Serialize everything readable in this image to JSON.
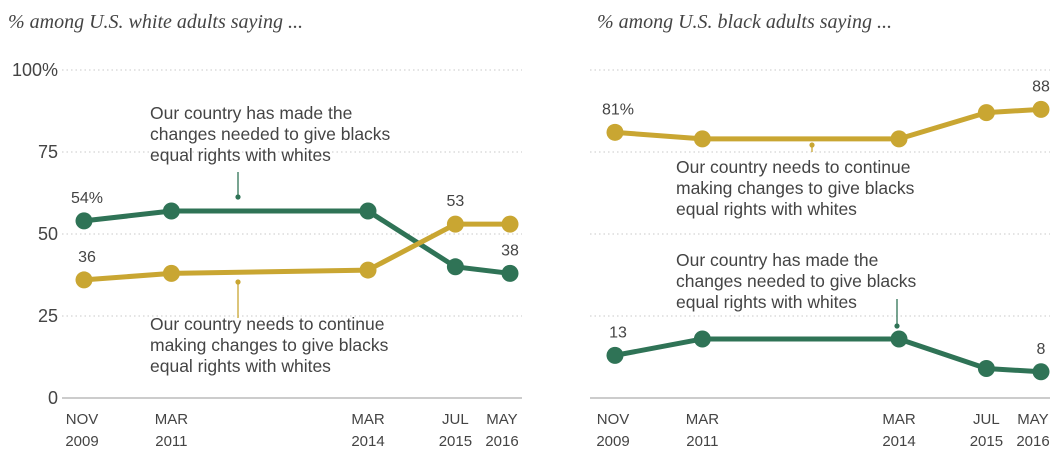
{
  "chart_data": [
    {
      "type": "line",
      "title": "% among U.S. white adults saying ...",
      "x_ticks": [
        {
          "top": "NOV",
          "bottom": "2009"
        },
        {
          "top": "MAR",
          "bottom": "2011"
        },
        {
          "top": "MAR",
          "bottom": "2014"
        },
        {
          "top": "JUL",
          "bottom": "2015"
        },
        {
          "top": "MAY",
          "bottom": "2016"
        }
      ],
      "x_dates": [
        "2009-11",
        "2011-03",
        "2014-03",
        "2015-07",
        "2016-05"
      ],
      "y_ticks": [
        "100%",
        "75",
        "50",
        "25",
        "0"
      ],
      "ylim": [
        0,
        100
      ],
      "grid": true,
      "series": [
        {
          "id": "made_changes",
          "color": "#2f7356",
          "values": [
            54,
            57,
            57,
            40,
            38
          ],
          "labels": [
            "54%",
            "",
            "",
            "",
            "38"
          ],
          "annotation": [
            "Our country has made the",
            "changes needed to give blacks",
            "equal rights with whites"
          ]
        },
        {
          "id": "continue_changes",
          "color": "#c9a632",
          "values": [
            36,
            38,
            39,
            53,
            53
          ],
          "labels": [
            "36",
            "",
            "",
            "53",
            ""
          ],
          "annotation": [
            "Our country needs to continue",
            "making changes to give blacks",
            "equal rights with whites"
          ]
        }
      ]
    },
    {
      "type": "line",
      "title": "% among U.S. black adults saying ...",
      "x_ticks": [
        {
          "top": "NOV",
          "bottom": "2009"
        },
        {
          "top": "MAR",
          "bottom": "2011"
        },
        {
          "top": "MAR",
          "bottom": "2014"
        },
        {
          "top": "JUL",
          "bottom": "2015"
        },
        {
          "top": "MAY",
          "bottom": "2016"
        }
      ],
      "x_dates": [
        "2009-11",
        "2011-03",
        "2014-03",
        "2015-07",
        "2016-05"
      ],
      "ylim": [
        0,
        100
      ],
      "grid": true,
      "series": [
        {
          "id": "continue_changes",
          "color": "#c9a632",
          "values": [
            81,
            79,
            79,
            87,
            88
          ],
          "labels": [
            "81%",
            "",
            "",
            "",
            "88"
          ],
          "annotation": [
            "Our country needs to continue",
            "making changes to give blacks",
            "equal rights with whites"
          ]
        },
        {
          "id": "made_changes",
          "color": "#2f7356",
          "values": [
            13,
            18,
            18,
            9,
            8
          ],
          "labels": [
            "13",
            "",
            "",
            "",
            "8"
          ],
          "annotation": [
            "Our country has made the",
            "changes needed to give blacks",
            "equal rights with whites"
          ]
        }
      ]
    }
  ]
}
